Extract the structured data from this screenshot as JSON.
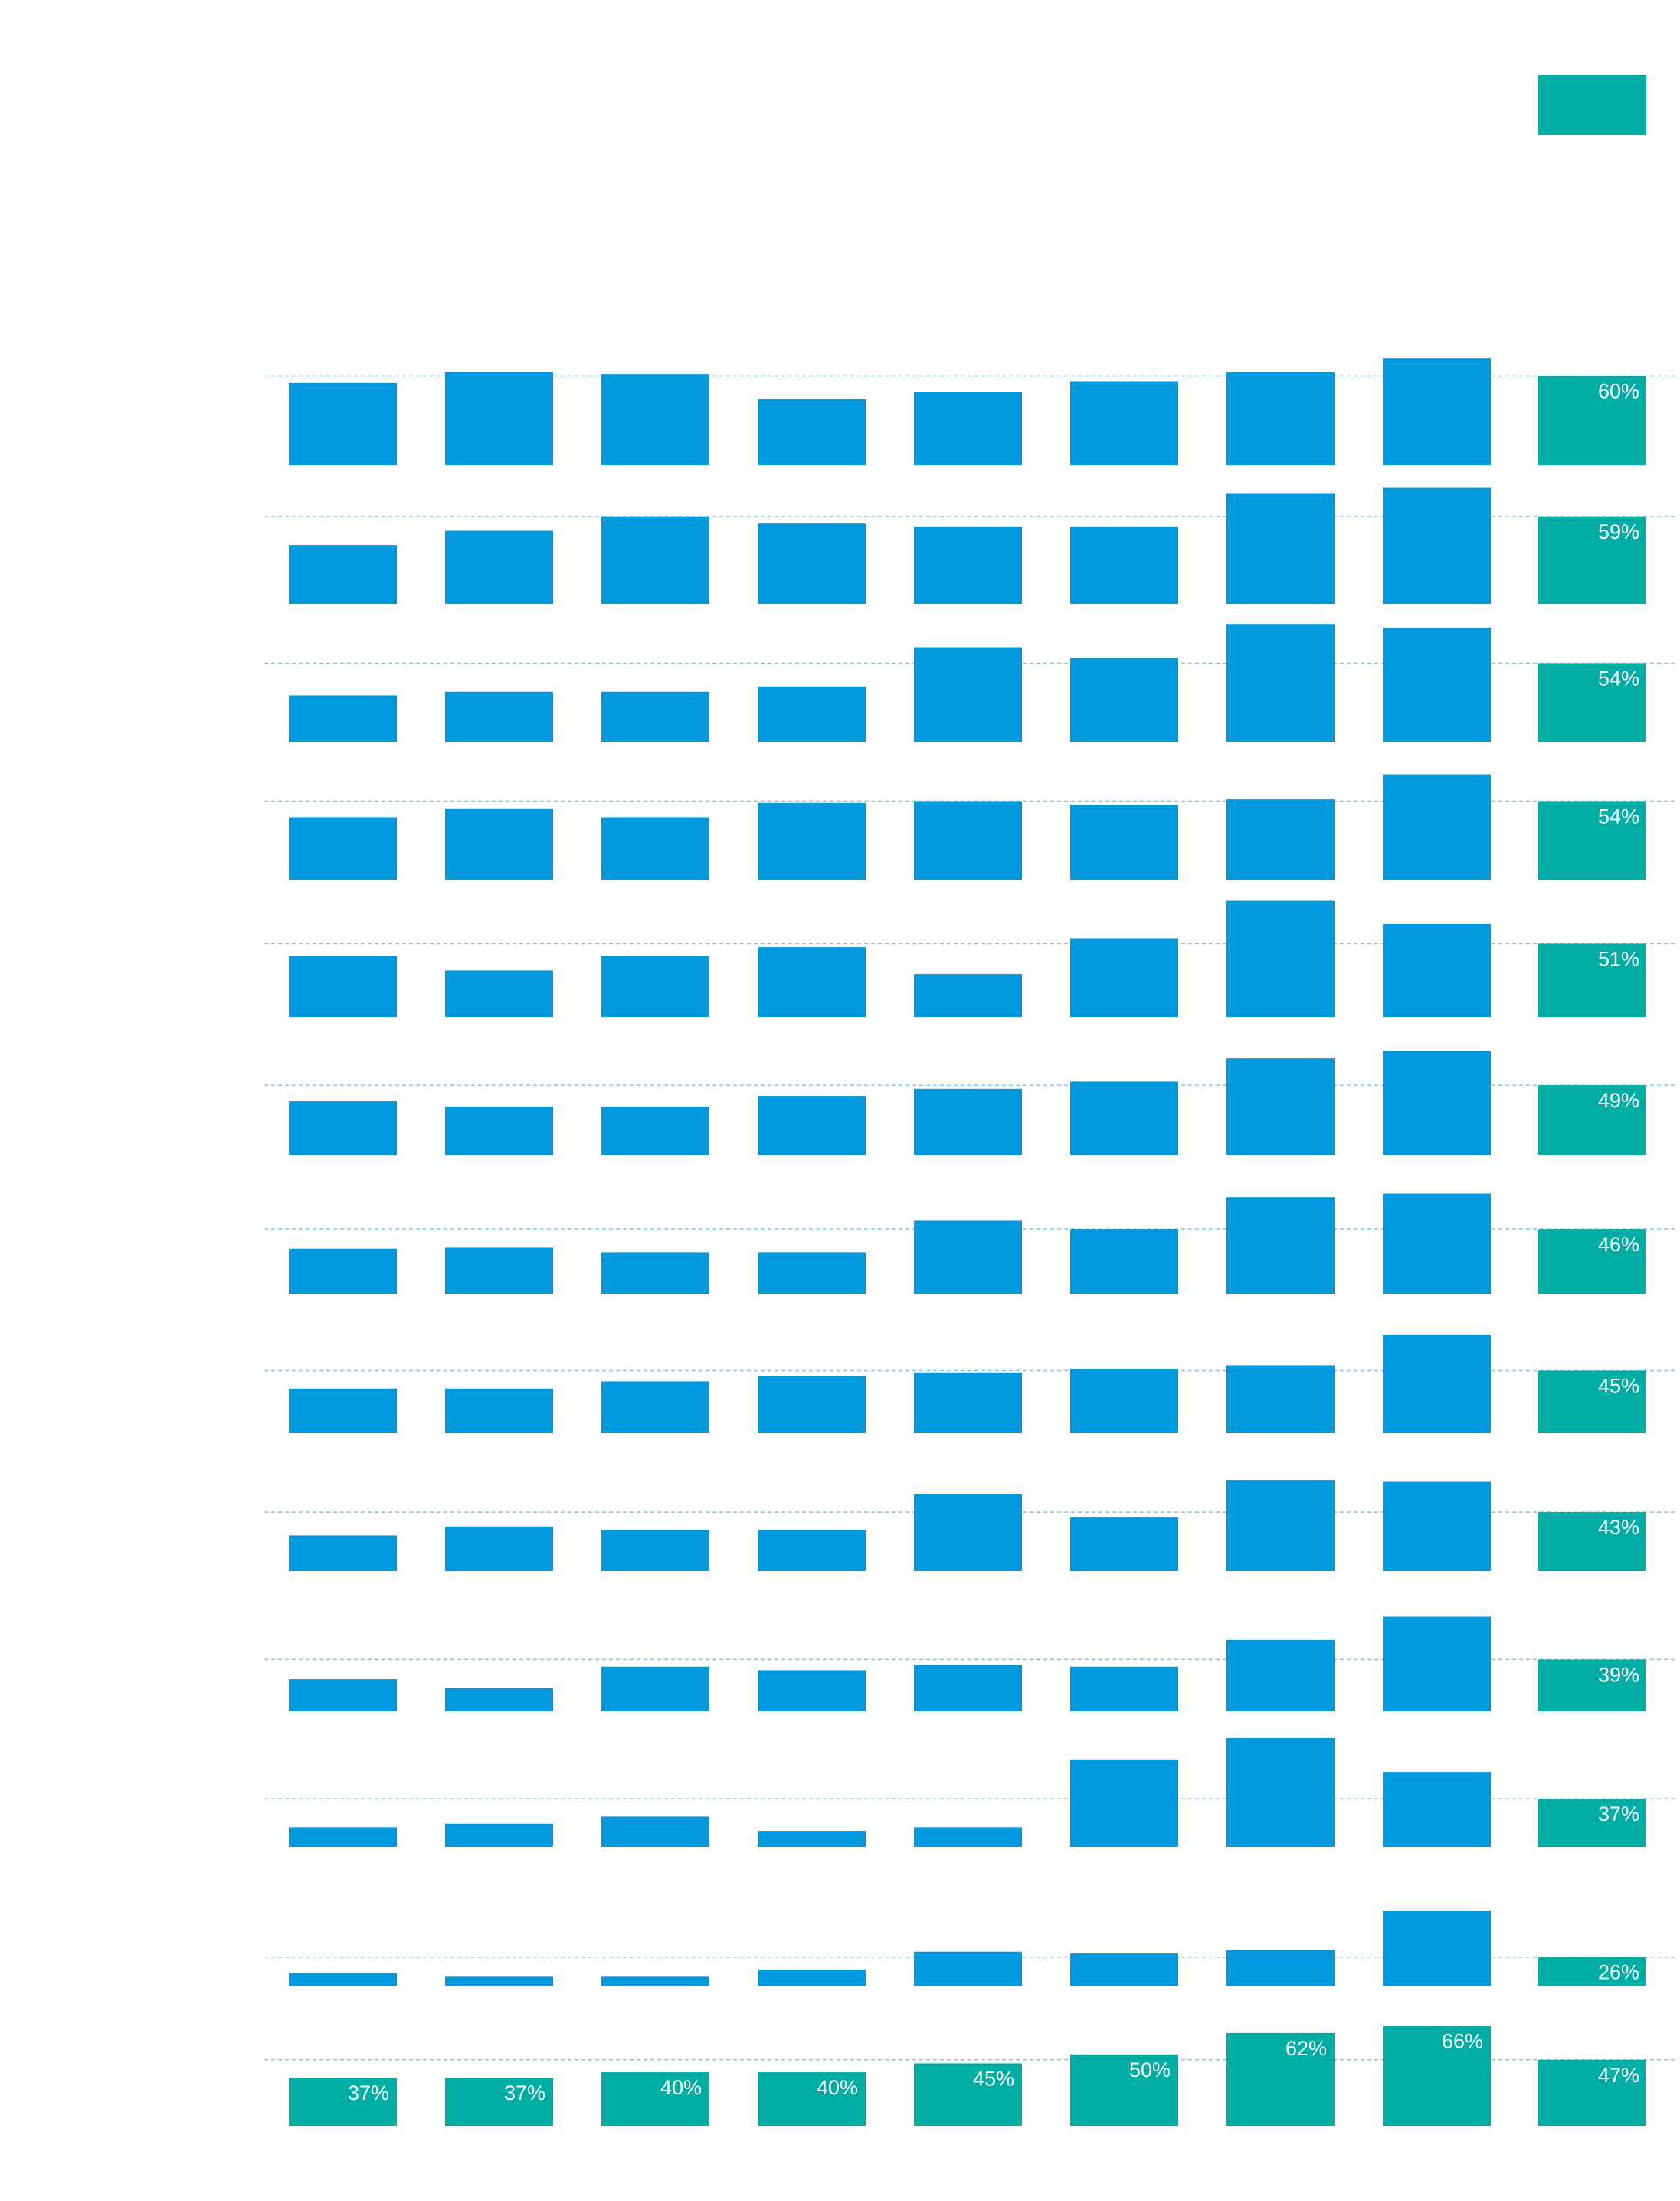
{
  "chart_data": {
    "type": "bar",
    "title": "",
    "xlabel": "",
    "ylabel": "",
    "grid": true,
    "legend": {
      "entries": [],
      "placement": "top-right"
    },
    "colors": {
      "bar": "#0099dd",
      "average": "#00ada4",
      "gridline": "#7cc7e6",
      "label": "#ffffff"
    },
    "row_averages": [
      {
        "value": 60,
        "label": "60%"
      },
      {
        "value": 59,
        "label": "59%"
      },
      {
        "value": 54,
        "label": "54%"
      },
      {
        "value": 54,
        "label": "54%"
      },
      {
        "value": 51,
        "label": "51%"
      },
      {
        "value": 49,
        "label": "49%"
      },
      {
        "value": 46,
        "label": "46%"
      },
      {
        "value": 45,
        "label": "45%"
      },
      {
        "value": 43,
        "label": "43%"
      },
      {
        "value": 39,
        "label": "39%"
      },
      {
        "value": 37,
        "label": "37%"
      },
      {
        "value": 26,
        "label": "26%"
      }
    ],
    "column_averages": [
      {
        "value": 37,
        "label": "37%"
      },
      {
        "value": 37,
        "label": "37%"
      },
      {
        "value": 40,
        "label": "40%"
      },
      {
        "value": 40,
        "label": "40%"
      },
      {
        "value": 45,
        "label": "45%"
      },
      {
        "value": 50,
        "label": "50%"
      },
      {
        "value": 62,
        "label": "62%"
      },
      {
        "value": 66,
        "label": "66%"
      }
    ],
    "overall_average": {
      "value": 47,
      "label": "47%"
    },
    "values": [
      [
        56,
        62,
        61,
        47,
        51,
        57,
        62,
        70
      ],
      [
        43,
        51,
        59,
        55,
        53,
        53,
        72,
        75
      ],
      [
        36,
        38,
        38,
        41,
        63,
        57,
        76,
        74
      ],
      [
        45,
        50,
        45,
        53,
        54,
        52,
        55,
        69
      ],
      [
        44,
        36,
        44,
        49,
        34,
        54,
        75,
        62
      ],
      [
        40,
        37,
        37,
        43,
        47,
        51,
        64,
        68
      ],
      [
        35,
        36,
        33,
        33,
        51,
        46,
        64,
        66
      ],
      [
        35,
        35,
        39,
        42,
        44,
        46,
        48,
        65
      ],
      [
        30,
        35,
        33,
        33,
        53,
        40,
        61,
        60
      ],
      [
        28,
        23,
        35,
        33,
        36,
        35,
        50,
        63
      ],
      [
        21,
        23,
        27,
        19,
        21,
        59,
        71,
        52
      ],
      [
        17,
        15,
        15,
        19,
        29,
        28,
        30,
        52
      ]
    ]
  }
}
